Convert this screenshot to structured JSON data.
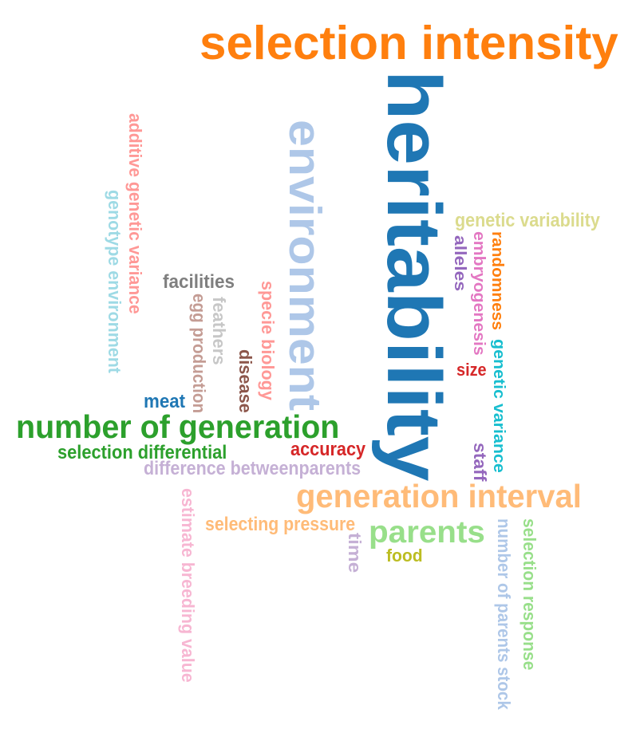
{
  "words": [
    {
      "text": "selection intensity",
      "color": "#ff7f0e"
    },
    {
      "text": "heritability",
      "color": "#1f77b4"
    },
    {
      "text": "environment",
      "color": "#aec7e8"
    },
    {
      "text": "additive genetic variance",
      "color": "#ff9896"
    },
    {
      "text": "genotype environment",
      "color": "#9edae5"
    },
    {
      "text": "genetic variability",
      "color": "#dbdb8d"
    },
    {
      "text": "randomness",
      "color": "#ff7f0e"
    },
    {
      "text": "embryogenesis",
      "color": "#e377c2"
    },
    {
      "text": "alleles",
      "color": "#9467bd"
    },
    {
      "text": "facilities",
      "color": "#7f7f7f"
    },
    {
      "text": "egg production",
      "color": "#c49c94"
    },
    {
      "text": "feathers",
      "color": "#c7c7c7"
    },
    {
      "text": "specie biology",
      "color": "#ff9896"
    },
    {
      "text": "disease",
      "color": "#8c564b"
    },
    {
      "text": "size",
      "color": "#d62728"
    },
    {
      "text": "genetic variance",
      "color": "#17becf"
    },
    {
      "text": "meat",
      "color": "#1f77b4"
    },
    {
      "text": "number of generation",
      "color": "#2ca02c"
    },
    {
      "text": "accuracy",
      "color": "#d62728"
    },
    {
      "text": "selection differential",
      "color": "#2ca02c"
    },
    {
      "text": "staff",
      "color": "#9467bd"
    },
    {
      "text": "difference betweenparents",
      "color": "#c5b0d5"
    },
    {
      "text": "generation interval",
      "color": "#ffbb78"
    },
    {
      "text": "estimate breeding value",
      "color": "#f7b6d2"
    },
    {
      "text": "selecting pressure",
      "color": "#ffbb78"
    },
    {
      "text": "parents",
      "color": "#98df8a"
    },
    {
      "text": "time",
      "color": "#c5b0d5"
    },
    {
      "text": "food",
      "color": "#bcbd22"
    },
    {
      "text": "number of parents stock",
      "color": "#aec7e8"
    },
    {
      "text": "selection response",
      "color": "#98df8a"
    }
  ]
}
